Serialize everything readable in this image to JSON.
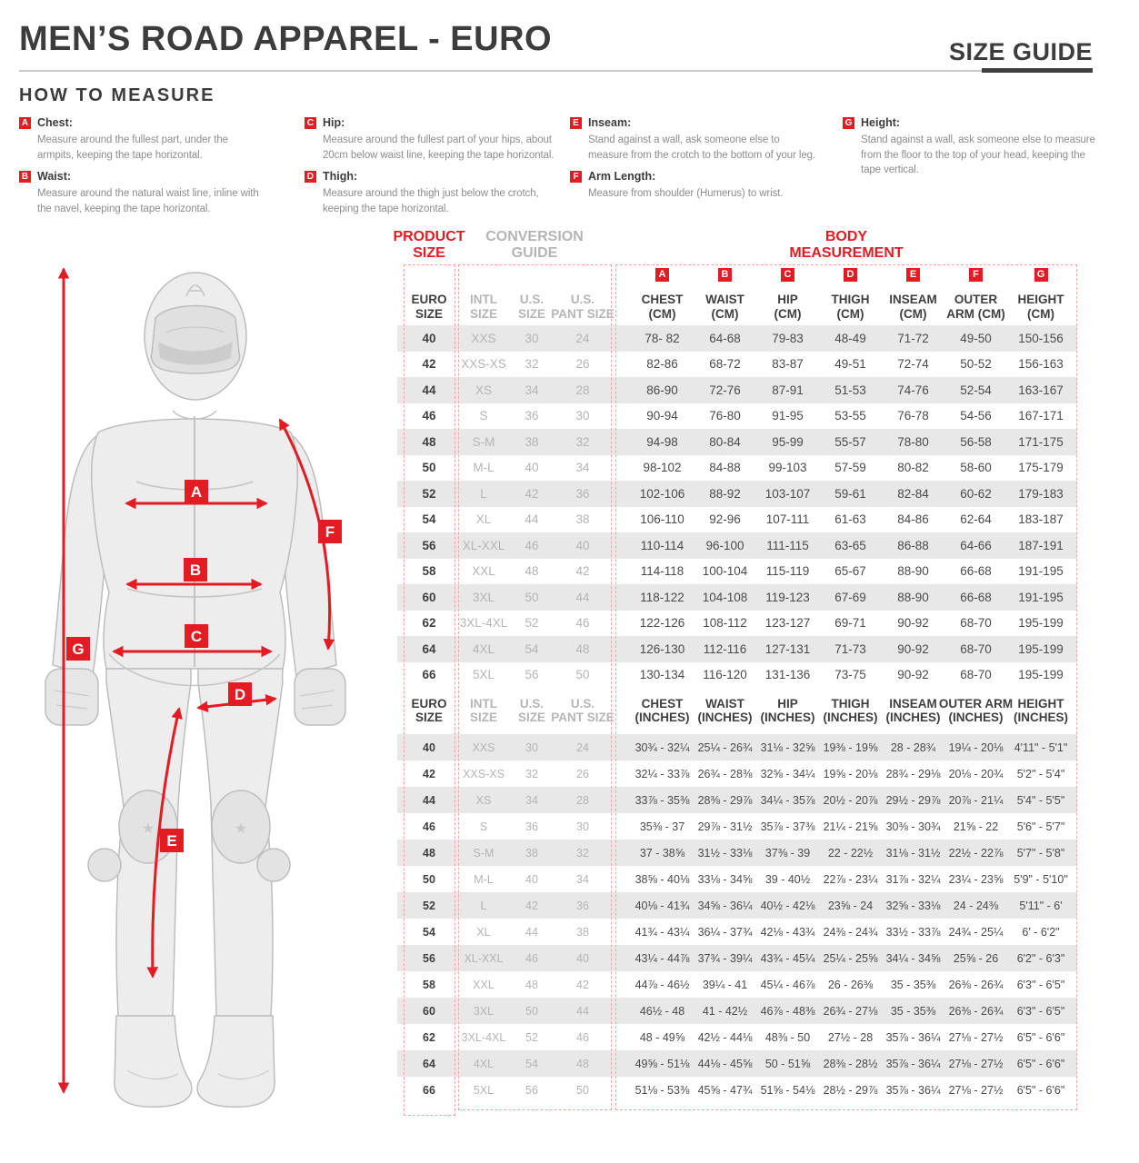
{
  "colors": {
    "accent_red": "#e31c23",
    "stripe_gray": "#e8e8e8",
    "text_dark": "#3c3c3c",
    "description_gray": "#8d8d8d",
    "conversion_gray": "#b4b4b4"
  },
  "header": {
    "title": "MEN’S ROAD APPAREL - EURO",
    "size_guide_label": "SIZE GUIDE"
  },
  "how_to_measure": {
    "heading": "HOW TO MEASURE",
    "items": [
      {
        "letter": "A",
        "label": "Chest:",
        "description": "Measure around the fullest part, under the armpits, keeping the tape horizontal."
      },
      {
        "letter": "B",
        "label": "Waist:",
        "description": "Measure around the natural waist line, inline with the navel, keeping the tape horizontal."
      },
      {
        "letter": "C",
        "label": "Hip:",
        "description": "Measure around the fullest part of your hips, about 20cm below waist line, keeping the tape horizontal."
      },
      {
        "letter": "D",
        "label": "Thigh:",
        "description": "Measure around the thigh just below the crotch, keeping the tape horizontal."
      },
      {
        "letter": "E",
        "label": "Inseam:",
        "description": "Stand against a wall, ask someone else to measure from the crotch to the bottom of your leg."
      },
      {
        "letter": "F",
        "label": "Arm Length:",
        "description": "Measure from shoulder (Humerus) to wrist."
      },
      {
        "letter": "G",
        "label": "Height:",
        "description": "Stand against a wall, ask someone else to measure from the floor to the top of your head, keeping the tape vertical."
      }
    ]
  },
  "figure": {
    "labels": [
      "A",
      "B",
      "C",
      "D",
      "E",
      "F",
      "G"
    ]
  },
  "table": {
    "product_size_title": "PRODUCT\nSIZE",
    "conversion_title": "CONVERSION\nGUIDE",
    "body_title": "BODY\nMEASUREMENT",
    "letters": [
      "A",
      "B",
      "C",
      "D",
      "E",
      "F",
      "G"
    ],
    "cm_header": {
      "euro": "EURO\nSIZE",
      "intl": "INTL\nSIZE",
      "us": "U.S.\nSIZE",
      "pant": "U.S.\nPANT SIZE",
      "cols": [
        "CHEST\n(CM)",
        "WAIST\n(CM)",
        "HIP\n(CM)",
        "THIGH\n(CM)",
        "INSEAM\n(CM)",
        "OUTER\nARM (CM)",
        "HEIGHT\n(CM)"
      ]
    },
    "inch_header": {
      "euro": "EURO\nSIZE",
      "intl": "INTL\nSIZE",
      "us": "U.S.\nSIZE",
      "pant": "U.S.\nPANT SIZE",
      "cols": [
        "CHEST\n(INCHES)",
        "WAIST\n(INCHES)",
        "HIP\n(INCHES)",
        "THIGH\n(INCHES)",
        "INSEAM\n(INCHES)",
        "OUTER ARM\n(INCHES)",
        "HEIGHT\n(INCHES)"
      ]
    },
    "cm_rows": [
      {
        "euro": "40",
        "intl": "XXS",
        "us": "30",
        "pant": "24",
        "values": [
          "78- 82",
          "64-68",
          "79-83",
          "48-49",
          "71-72",
          "49-50",
          "150-156"
        ]
      },
      {
        "euro": "42",
        "intl": "XXS-XS",
        "us": "32",
        "pant": "26",
        "values": [
          "82-86",
          "68-72",
          "83-87",
          "49-51",
          "72-74",
          "50-52",
          "156-163"
        ]
      },
      {
        "euro": "44",
        "intl": "XS",
        "us": "34",
        "pant": "28",
        "values": [
          "86-90",
          "72-76",
          "87-91",
          "51-53",
          "74-76",
          "52-54",
          "163-167"
        ]
      },
      {
        "euro": "46",
        "intl": "S",
        "us": "36",
        "pant": "30",
        "values": [
          "90-94",
          "76-80",
          "91-95",
          "53-55",
          "76-78",
          "54-56",
          "167-171"
        ]
      },
      {
        "euro": "48",
        "intl": "S-M",
        "us": "38",
        "pant": "32",
        "values": [
          "94-98",
          "80-84",
          "95-99",
          "55-57",
          "78-80",
          "56-58",
          "171-175"
        ]
      },
      {
        "euro": "50",
        "intl": "M-L",
        "us": "40",
        "pant": "34",
        "values": [
          "98-102",
          "84-88",
          "99-103",
          "57-59",
          "80-82",
          "58-60",
          "175-179"
        ]
      },
      {
        "euro": "52",
        "intl": "L",
        "us": "42",
        "pant": "36",
        "values": [
          "102-106",
          "88-92",
          "103-107",
          "59-61",
          "82-84",
          "60-62",
          "179-183"
        ]
      },
      {
        "euro": "54",
        "intl": "XL",
        "us": "44",
        "pant": "38",
        "values": [
          "106-110",
          "92-96",
          "107-111",
          "61-63",
          "84-86",
          "62-64",
          "183-187"
        ]
      },
      {
        "euro": "56",
        "intl": "XL-XXL",
        "us": "46",
        "pant": "40",
        "values": [
          "110-114",
          "96-100",
          "111-115",
          "63-65",
          "86-88",
          "64-66",
          "187-191"
        ]
      },
      {
        "euro": "58",
        "intl": "XXL",
        "us": "48",
        "pant": "42",
        "values": [
          "114-118",
          "100-104",
          "115-119",
          "65-67",
          "88-90",
          "66-68",
          "191-195"
        ]
      },
      {
        "euro": "60",
        "intl": "3XL",
        "us": "50",
        "pant": "44",
        "values": [
          "118-122",
          "104-108",
          "119-123",
          "67-69",
          "88-90",
          "66-68",
          "191-195"
        ]
      },
      {
        "euro": "62",
        "intl": "3XL-4XL",
        "us": "52",
        "pant": "46",
        "values": [
          "122-126",
          "108-112",
          "123-127",
          "69-71",
          "90-92",
          "68-70",
          "195-199"
        ]
      },
      {
        "euro": "64",
        "intl": "4XL",
        "us": "54",
        "pant": "48",
        "values": [
          "126-130",
          "112-116",
          "127-131",
          "71-73",
          "90-92",
          "68-70",
          "195-199"
        ]
      },
      {
        "euro": "66",
        "intl": "5XL",
        "us": "56",
        "pant": "50",
        "values": [
          "130-134",
          "116-120",
          "131-136",
          "73-75",
          "90-92",
          "68-70",
          "195-199"
        ]
      }
    ],
    "inch_rows": [
      {
        "euro": "40",
        "intl": "XXS",
        "us": "30",
        "pant": "24",
        "values": [
          "30¾ - 32¼",
          "25¼ - 26¾",
          "31⅛ - 32⅝",
          "19⅜ - 19⅝",
          "28 - 28¾",
          "19¼ - 20⅛",
          "4'11\" - 5'1\""
        ]
      },
      {
        "euro": "42",
        "intl": "XXS-XS",
        "us": "32",
        "pant": "26",
        "values": [
          "32¼ - 33⅞",
          "26¾ - 28⅜",
          "32⅝ - 34¼",
          "19⅝ - 20⅛",
          "28¾ - 29⅛",
          "20⅛ - 20¾",
          "5'2\" - 5'4\""
        ]
      },
      {
        "euro": "44",
        "intl": "XS",
        "us": "34",
        "pant": "28",
        "values": [
          "33⅞ - 35⅜",
          "28⅜ - 29⅞",
          "34¼ - 35⅞",
          "20½ - 20⅞",
          "29½ - 29⅞",
          "20⅞ - 21¼",
          "5'4\" - 5'5\""
        ]
      },
      {
        "euro": "46",
        "intl": "S",
        "us": "36",
        "pant": "30",
        "values": [
          "35⅜ - 37",
          "29⅞ - 31½",
          "35⅞ - 37⅜",
          "21¼ - 21⅝",
          "30⅜ - 30¾",
          "21⅝ - 22",
          "5'6\" - 5'7\""
        ]
      },
      {
        "euro": "48",
        "intl": "S-M",
        "us": "38",
        "pant": "32",
        "values": [
          "37 - 38⅝",
          "31½ - 33⅛",
          "37⅜ - 39",
          "22 - 22½",
          "31⅛ - 31½",
          "22½ - 22⅞",
          "5'7\" - 5'8\""
        ]
      },
      {
        "euro": "50",
        "intl": "M-L",
        "us": "40",
        "pant": "34",
        "values": [
          "38⅝ - 40⅛",
          "33⅛ - 34⅝",
          "39 - 40½",
          "22⅞ - 23¼",
          "31⅞ - 32¼",
          "23¼ - 23⅝",
          "5'9\" - 5'10\""
        ]
      },
      {
        "euro": "52",
        "intl": "L",
        "us": "42",
        "pant": "36",
        "values": [
          "40⅛ - 41¾",
          "34⅝ - 36¼",
          "40½ - 42⅛",
          "23⅝ - 24",
          "32⅝ - 33⅛",
          "24 - 24⅜",
          "5'11\" - 6'"
        ]
      },
      {
        "euro": "54",
        "intl": "XL",
        "us": "44",
        "pant": "38",
        "values": [
          "41¾ - 43¼",
          "36¼ - 37¾",
          "42⅛ - 43¾",
          "24⅜ - 24¾",
          "33½ - 33⅞",
          "24¾ - 25¼",
          "6' - 6'2\""
        ]
      },
      {
        "euro": "56",
        "intl": "XL-XXL",
        "us": "46",
        "pant": "40",
        "values": [
          "43¼ - 44⅞",
          "37¾ - 39¼",
          "43¾ - 45¼",
          "25¼ - 25⅝",
          "34¼ - 34⅝",
          "25⅝ - 26",
          "6'2\" - 6'3\""
        ]
      },
      {
        "euro": "58",
        "intl": "XXL",
        "us": "48",
        "pant": "42",
        "values": [
          "44⅞ - 46½",
          "39¼ - 41",
          "45¼ - 46⅞",
          "26 - 26⅜",
          "35 - 35⅜",
          "26⅜ - 26¾",
          "6'3\" - 6'5\""
        ]
      },
      {
        "euro": "60",
        "intl": "3XL",
        "us": "50",
        "pant": "44",
        "values": [
          "46½ - 48",
          "41 - 42½",
          "46⅞ - 48⅜",
          "26¾ - 27⅛",
          "35 - 35⅜",
          "26⅜ - 26¾",
          "6'3\" - 6'5\""
        ]
      },
      {
        "euro": "62",
        "intl": "3XL-4XL",
        "us": "52",
        "pant": "46",
        "values": [
          "48 - 49⅝",
          "42½ - 44⅛",
          "48⅜ - 50",
          "27½ - 28",
          "35⅞ - 36¼",
          "27⅛ - 27½",
          "6'5\" - 6'6\""
        ]
      },
      {
        "euro": "64",
        "intl": "4XL",
        "us": "54",
        "pant": "48",
        "values": [
          "49⅝ - 51⅛",
          "44⅛ - 45⅝",
          "50 - 51⅝",
          "28⅜ - 28½",
          "35⅞ - 36¼",
          "27⅛ - 27½",
          "6'5\" - 6'6\""
        ]
      },
      {
        "euro": "66",
        "intl": "5XL",
        "us": "56",
        "pant": "50",
        "values": [
          "51⅛ - 53⅜",
          "45⅝ - 47¾",
          "51⅝ - 54⅛",
          "28½ - 29⅞",
          "35⅞ - 36¼",
          "27⅛ - 27½",
          "6'5\" - 6'6\""
        ]
      }
    ]
  }
}
